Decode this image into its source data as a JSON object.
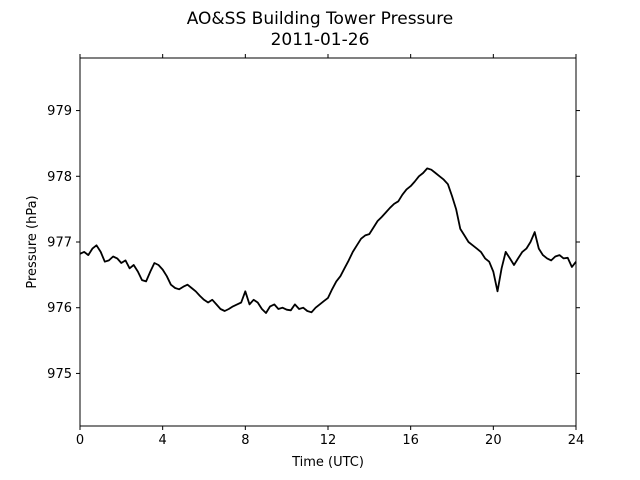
{
  "chart_data": {
    "type": "line",
    "title": "AO&SS Building Tower Pressure",
    "subtitle": "2011-01-26",
    "xlabel": "Time (UTC)",
    "ylabel": "Pressure (hPa)",
    "xlim": [
      0,
      24
    ],
    "ylim": [
      974.2,
      979.8
    ],
    "x_ticks": [
      0,
      4,
      8,
      12,
      16,
      20,
      24
    ],
    "y_ticks": [
      975,
      976,
      977,
      978,
      979
    ],
    "grid": false,
    "legend": "none",
    "line_color": "#000000",
    "series": [
      {
        "x": [
          0.0,
          0.2,
          0.4,
          0.6,
          0.8,
          1.0,
          1.2,
          1.4,
          1.6,
          1.8,
          2.0,
          2.2,
          2.4,
          2.6,
          2.8,
          3.0,
          3.2,
          3.4,
          3.6,
          3.8,
          4.0,
          4.2,
          4.4,
          4.6,
          4.8,
          5.0,
          5.2,
          5.4,
          5.6,
          5.8,
          6.0,
          6.2,
          6.4,
          6.6,
          6.8,
          7.0,
          7.2,
          7.4,
          7.6,
          7.8,
          8.0,
          8.2,
          8.4,
          8.6,
          8.8,
          9.0,
          9.2,
          9.4,
          9.6,
          9.8,
          10.0,
          10.2,
          10.4,
          10.6,
          10.8,
          11.0,
          11.2,
          11.4,
          11.6,
          11.8,
          12.0,
          12.2,
          12.4,
          12.6,
          12.8,
          13.0,
          13.2,
          13.4,
          13.6,
          13.8,
          14.0,
          14.2,
          14.4,
          14.6,
          14.8,
          15.0,
          15.2,
          15.4,
          15.6,
          15.8,
          16.0,
          16.2,
          16.4,
          16.6,
          16.8,
          17.0,
          17.2,
          17.4,
          17.6,
          17.8,
          18.0,
          18.2,
          18.4,
          18.6,
          18.8,
          19.0,
          19.2,
          19.4,
          19.6,
          19.8,
          20.0,
          20.2,
          20.4,
          20.6,
          20.8,
          21.0,
          21.2,
          21.4,
          21.6,
          21.8,
          22.0,
          22.2,
          22.4,
          22.6,
          22.8,
          23.0,
          23.2,
          23.4,
          23.6,
          23.8,
          24.0
        ],
        "values": [
          976.82,
          976.85,
          976.8,
          976.9,
          976.95,
          976.85,
          976.7,
          976.72,
          976.78,
          976.75,
          976.68,
          976.72,
          976.6,
          976.65,
          976.55,
          976.42,
          976.4,
          976.55,
          976.68,
          976.65,
          976.58,
          976.48,
          976.35,
          976.3,
          976.28,
          976.32,
          976.35,
          976.3,
          976.25,
          976.18,
          976.12,
          976.08,
          976.12,
          976.05,
          975.98,
          975.95,
          975.98,
          976.02,
          976.05,
          976.08,
          976.25,
          976.05,
          976.12,
          976.08,
          975.98,
          975.92,
          976.02,
          976.05,
          975.98,
          976.0,
          975.97,
          975.96,
          976.05,
          975.98,
          976.0,
          975.95,
          975.93,
          976.0,
          976.05,
          976.1,
          976.15,
          976.28,
          976.4,
          976.48,
          976.6,
          976.72,
          976.85,
          976.95,
          977.05,
          977.1,
          977.12,
          977.22,
          977.32,
          977.38,
          977.45,
          977.52,
          977.58,
          977.62,
          977.72,
          977.8,
          977.85,
          977.92,
          978.0,
          978.05,
          978.12,
          978.1,
          978.05,
          978.0,
          977.95,
          977.88,
          977.7,
          977.5,
          977.2,
          977.1,
          977.0,
          976.95,
          976.9,
          976.85,
          976.75,
          976.7,
          976.55,
          976.25,
          976.6,
          976.85,
          976.75,
          976.65,
          976.75,
          976.85,
          976.9,
          977.0,
          977.15,
          976.9,
          976.8,
          976.75,
          976.72,
          976.78,
          976.8,
          976.75,
          976.76,
          976.62,
          976.7
        ]
      }
    ]
  }
}
